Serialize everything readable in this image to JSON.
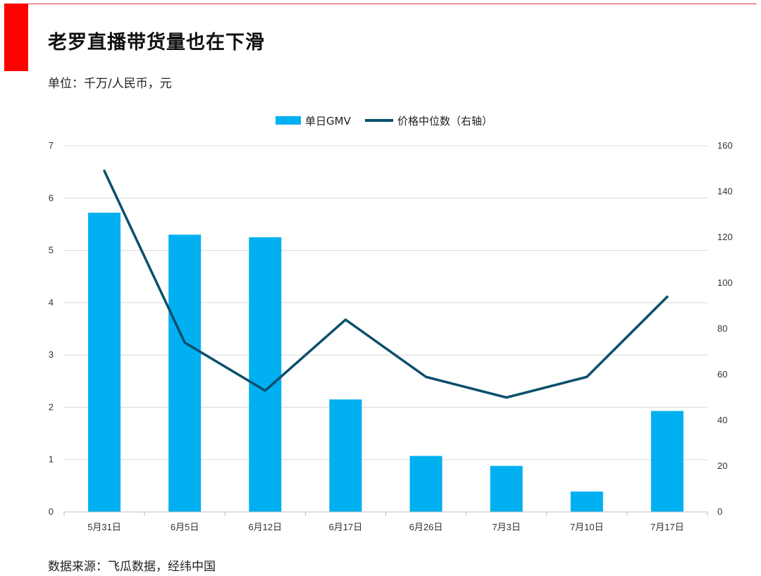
{
  "title": "老罗直播带货量也在下滑",
  "unit_note": "单位：千万/人民币，元",
  "source_note": "数据来源：飞瓜数据，经纬中国",
  "colors": {
    "bar": "#00b0f0",
    "line": "#0b4f6c",
    "accent": "#ff0000",
    "grid": "#d9d9d9"
  },
  "chart_data": {
    "type": "bar",
    "categories": [
      "5月31日",
      "6月5日",
      "6月12日",
      "6月17日",
      "6月26日",
      "7月3日",
      "7月10日",
      "7月17日"
    ],
    "series": [
      {
        "name": "单日GMV",
        "type": "bar",
        "axis": "left",
        "values": [
          5.72,
          5.3,
          5.25,
          2.15,
          1.07,
          0.88,
          0.39,
          1.93
        ]
      },
      {
        "name": "价格中位数（右轴）",
        "type": "line",
        "axis": "right",
        "values": [
          149,
          74,
          53,
          84,
          59,
          50,
          59,
          94
        ]
      }
    ],
    "y_left": {
      "min": 0,
      "max": 7,
      "ticks": [
        "0",
        "1",
        "2",
        "3",
        "4",
        "5",
        "6",
        "7"
      ]
    },
    "y_right": {
      "min": 0,
      "max": 160,
      "ticks": [
        "0",
        "20",
        "40",
        "60",
        "80",
        "100",
        "120",
        "140",
        "160"
      ]
    },
    "grid": true,
    "legend": "top-center"
  }
}
